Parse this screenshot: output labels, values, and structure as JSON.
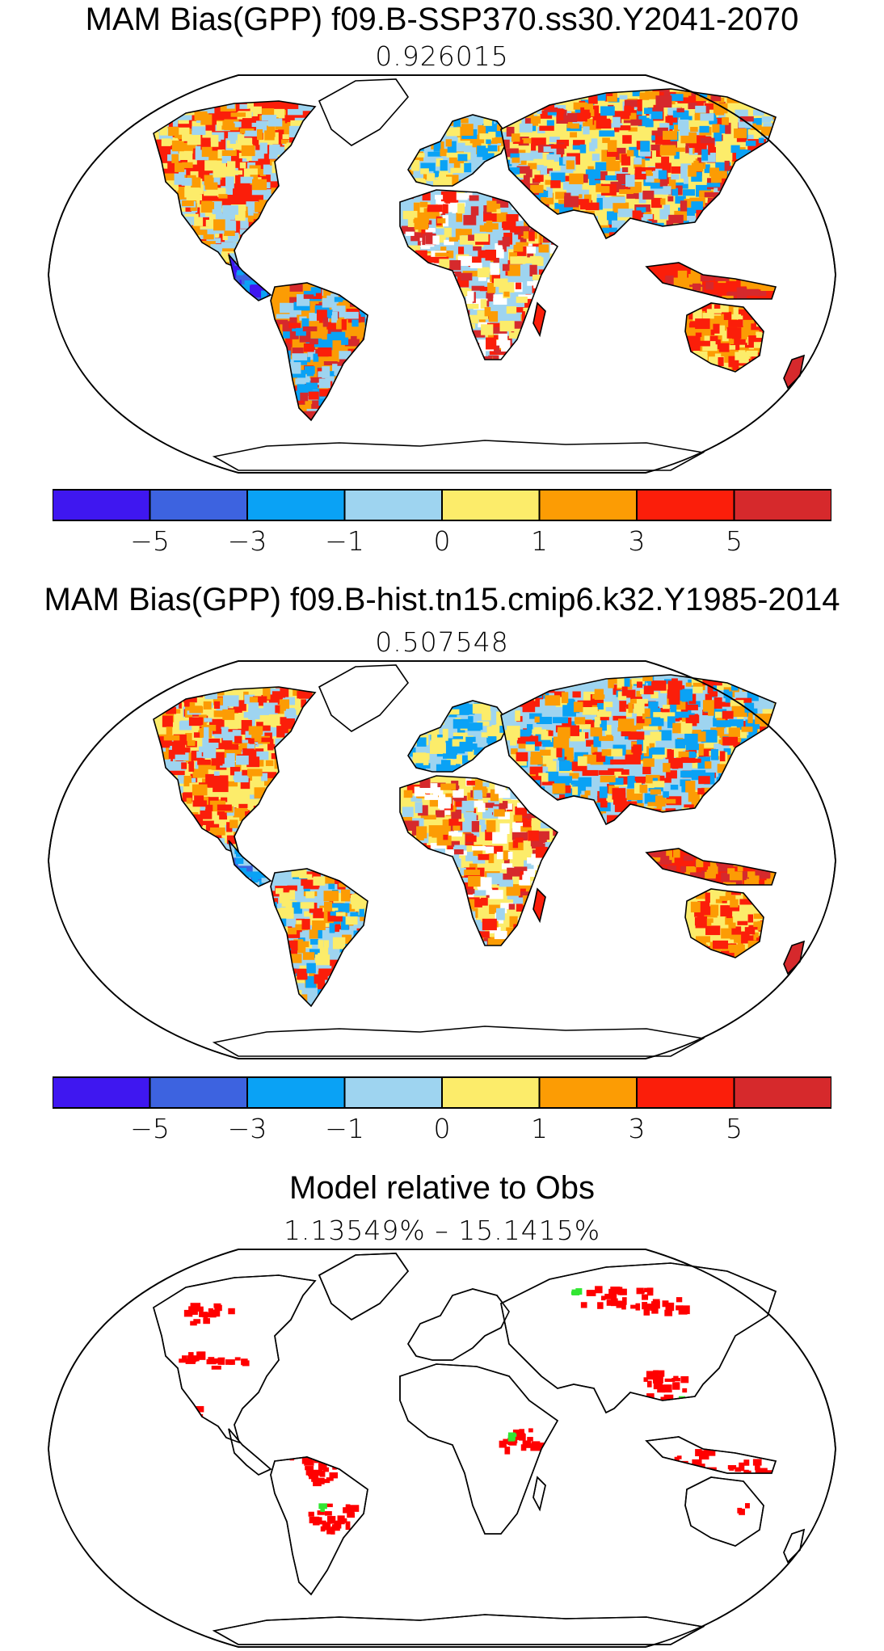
{
  "panels": [
    {
      "title": "MAM Bias(GPP) f09.B-SSP370.ss30.Y2041-2070",
      "subtitle": "0.926015",
      "has_colorbar": true
    },
    {
      "title": "MAM Bias(GPP) f09.B-hist.tn15.cmip6.k32.Y1985-2014",
      "subtitle": "0.507548",
      "has_colorbar": true
    },
    {
      "title": "Model relative to Obs",
      "subtitle": "1.13549% – 15.1415%",
      "has_colorbar": false
    }
  ],
  "colorbar": {
    "colors": [
      "#3f17f0",
      "#3d63e0",
      "#0aa2f5",
      "#9ed4f0",
      "#fcec6a",
      "#fc9c04",
      "#fb1e0a",
      "#d6292c"
    ],
    "labels": [
      "−5",
      "−3",
      "−1",
      "0",
      "1",
      "3",
      "5"
    ]
  },
  "colors": {
    "significant_red": "#ff0000",
    "significant_green": "#32e632",
    "white": "#ffffff"
  }
}
